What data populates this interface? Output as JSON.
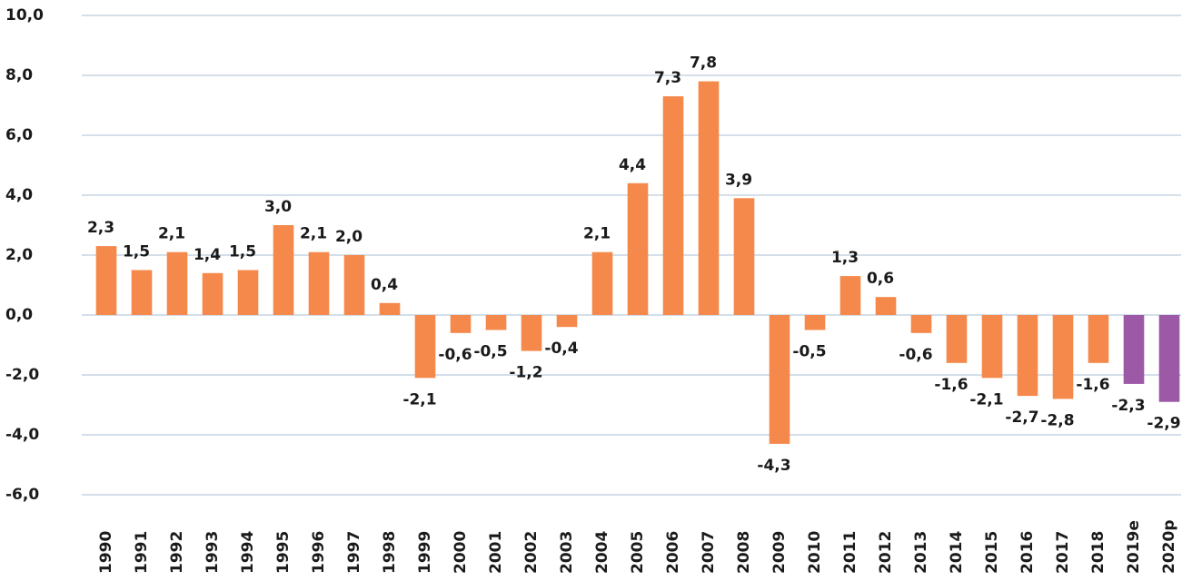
{
  "chart_data": {
    "type": "bar",
    "categories": [
      "1990",
      "1991",
      "1992",
      "1993",
      "1994",
      "1995",
      "1996",
      "1997",
      "1998",
      "1999",
      "2000",
      "2001",
      "2002",
      "2003",
      "2004",
      "2005",
      "2006",
      "2007",
      "2008",
      "2009",
      "2010",
      "2011",
      "2012",
      "2013",
      "2014",
      "2015",
      "2016",
      "2017",
      "2018",
      "2019e",
      "2020p"
    ],
    "values": [
      2.3,
      1.5,
      2.1,
      1.4,
      1.5,
      3.0,
      2.1,
      2.0,
      0.4,
      -2.1,
      -0.6,
      -0.5,
      -1.2,
      -0.4,
      2.1,
      4.4,
      7.3,
      7.8,
      3.9,
      -4.3,
      -0.5,
      1.3,
      0.6,
      -0.6,
      -1.6,
      -2.1,
      -2.7,
      -2.8,
      -1.6,
      -2.3,
      -2.9
    ],
    "value_labels": [
      "2,3",
      "1,5",
      "2,1",
      "1,4",
      "1,5",
      "3,0",
      "2,1",
      "2,0",
      "0,4",
      "-2,1",
      "-0,6",
      "-0,5",
      "-1,2",
      "-0,4",
      "2,1",
      "4,4",
      "7,3",
      "7,8",
      "3,9",
      "-4,3",
      "-0,5",
      "1,3",
      "0,6",
      "-0,6",
      "-1,6",
      "-2,1",
      "-2,7",
      "-2,8",
      "-1,6",
      "-2,3",
      "-2,9"
    ],
    "colors": [
      "#f4894b",
      "#f4894b",
      "#f4894b",
      "#f4894b",
      "#f4894b",
      "#f4894b",
      "#f4894b",
      "#f4894b",
      "#f4894b",
      "#f4894b",
      "#f4894b",
      "#f4894b",
      "#f4894b",
      "#f4894b",
      "#f4894b",
      "#f4894b",
      "#f4894b",
      "#f4894b",
      "#f4894b",
      "#f4894b",
      "#f4894b",
      "#f4894b",
      "#f4894b",
      "#f4894b",
      "#f4894b",
      "#f4894b",
      "#f4894b",
      "#f4894b",
      "#f4894b",
      "#9b59a6",
      "#9b59a6"
    ],
    "ylim": [
      -6,
      10
    ],
    "yticks": [
      {
        "value": -6,
        "label": "-6,0"
      },
      {
        "value": -4,
        "label": "-4,0"
      },
      {
        "value": -2,
        "label": "-2,0"
      },
      {
        "value": 0,
        "label": "0,0"
      },
      {
        "value": 2,
        "label": "2,0"
      },
      {
        "value": 4,
        "label": "4,0"
      },
      {
        "value": 6,
        "label": "6,0"
      },
      {
        "value": 8,
        "label": "8,0"
      },
      {
        "value": 10,
        "label": "10,0"
      }
    ],
    "grid": true
  }
}
